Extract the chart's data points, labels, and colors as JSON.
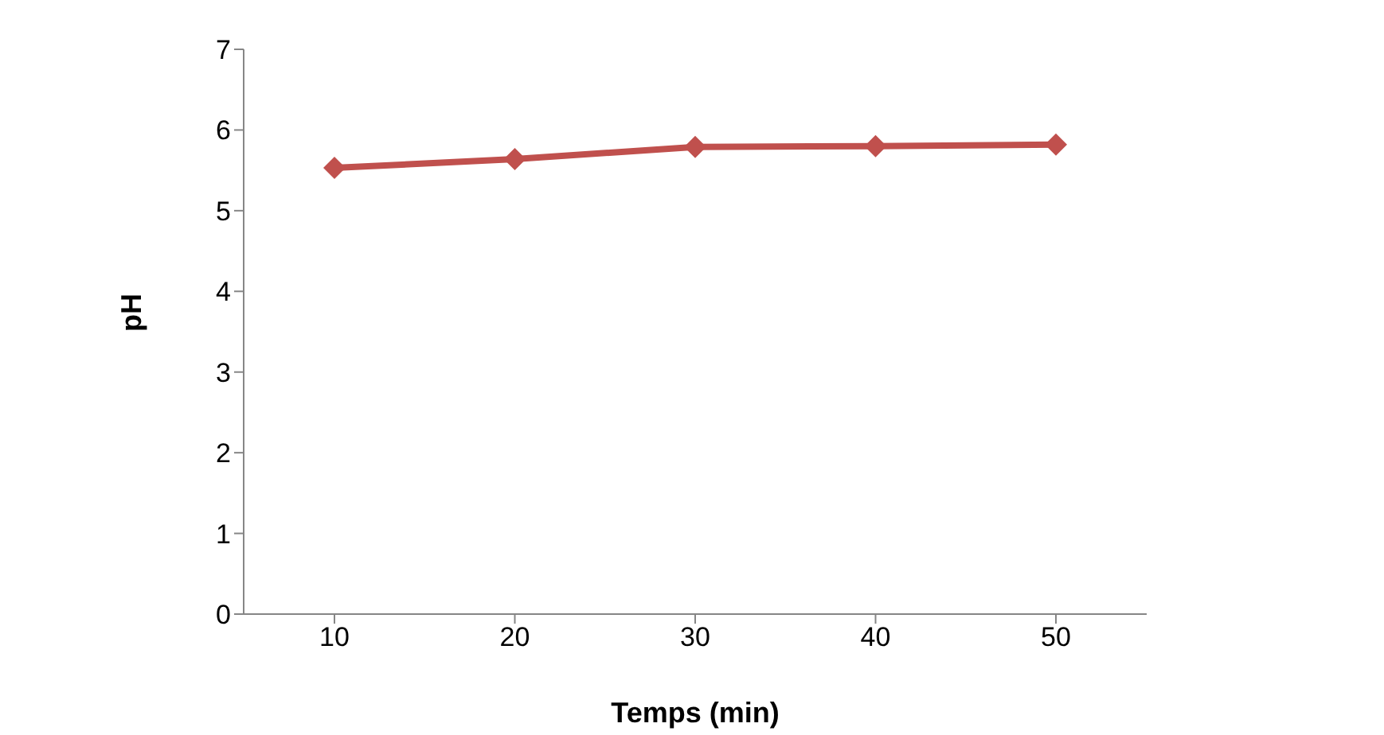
{
  "chart_data": {
    "type": "line",
    "xlabel": "Temps (min)",
    "ylabel": "pH",
    "categories": [
      "10",
      "20",
      "30",
      "40",
      "50"
    ],
    "series": [
      {
        "color": "#c0504d",
        "values": [
          5.53,
          5.64,
          5.79,
          5.8,
          5.82
        ]
      }
    ],
    "ylim": [
      0,
      7
    ],
    "yticks": [
      0,
      1,
      2,
      3,
      4,
      5,
      6,
      7
    ],
    "grid": false,
    "legend": false,
    "marker": "diamond",
    "line_style": "solid"
  }
}
